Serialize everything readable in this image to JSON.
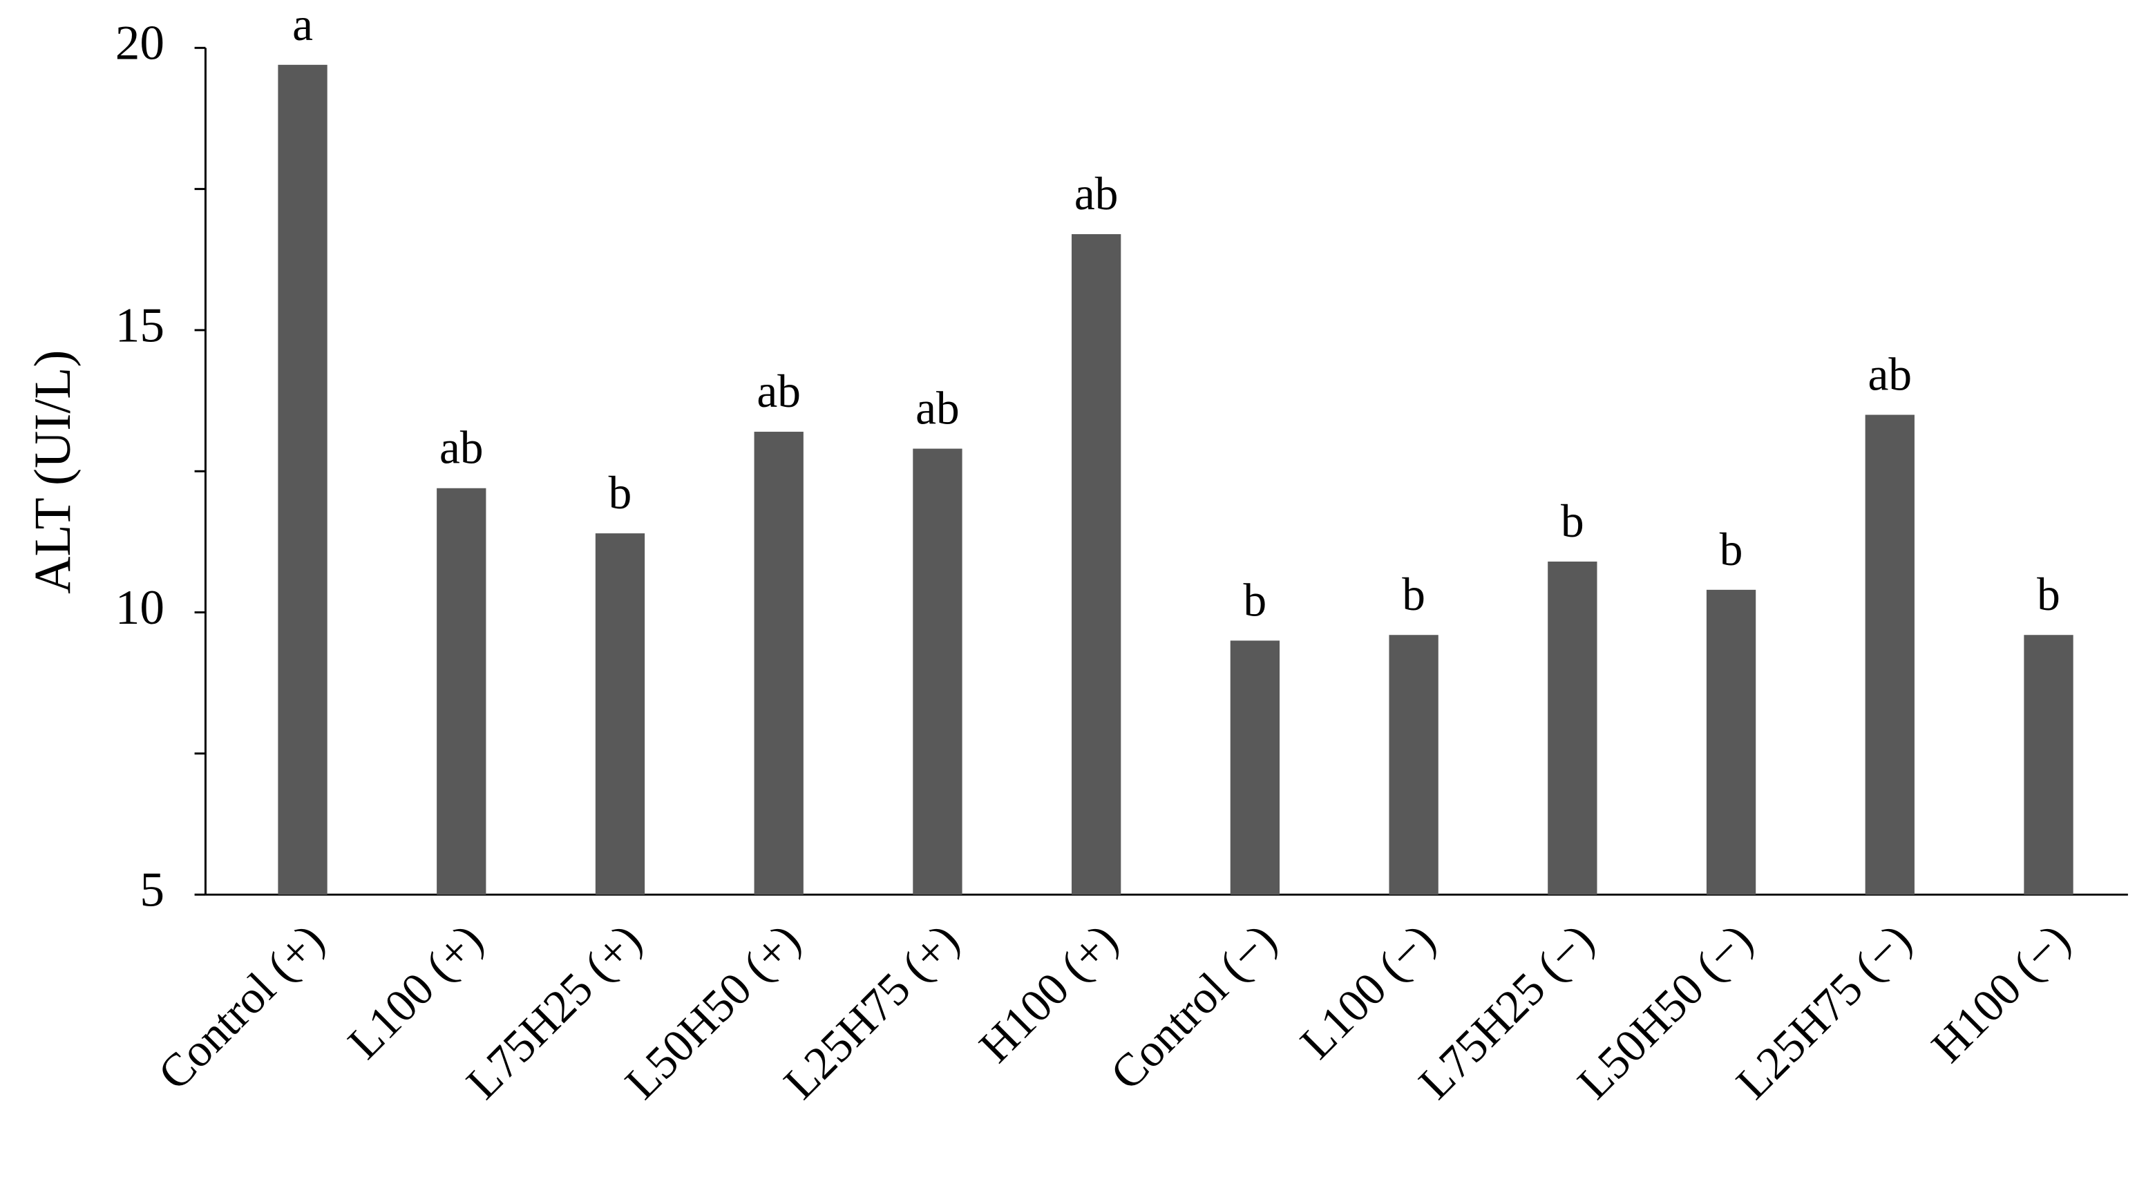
{
  "chart_data": {
    "type": "bar",
    "y_label": "ALT (UI/L)",
    "categories": [
      "Control (+)",
      "L100 (+)",
      "L75H25 (+)",
      "L50H50 (+)",
      "L25H75 (+)",
      "H100 (+)",
      "Control (−)",
      "L100 (−)",
      "L75H25 (−)",
      "L50H50 (−)",
      "L25H75 (−)",
      "H100 (−)"
    ],
    "values": [
      19.7,
      12.2,
      11.4,
      13.2,
      12.9,
      16.7,
      9.5,
      9.6,
      10.9,
      10.4,
      13.5,
      9.6
    ],
    "annotations": [
      "a",
      "ab",
      "b",
      "ab",
      "ab",
      "ab",
      "b",
      "b",
      "b",
      "b",
      "ab",
      "b"
    ],
    "color": "#595959",
    "ylim": [
      5,
      20
    ],
    "yticks": [
      5,
      10,
      15,
      20
    ],
    "yminor_ticks": [
      7.5,
      12.5,
      17.5
    ]
  }
}
